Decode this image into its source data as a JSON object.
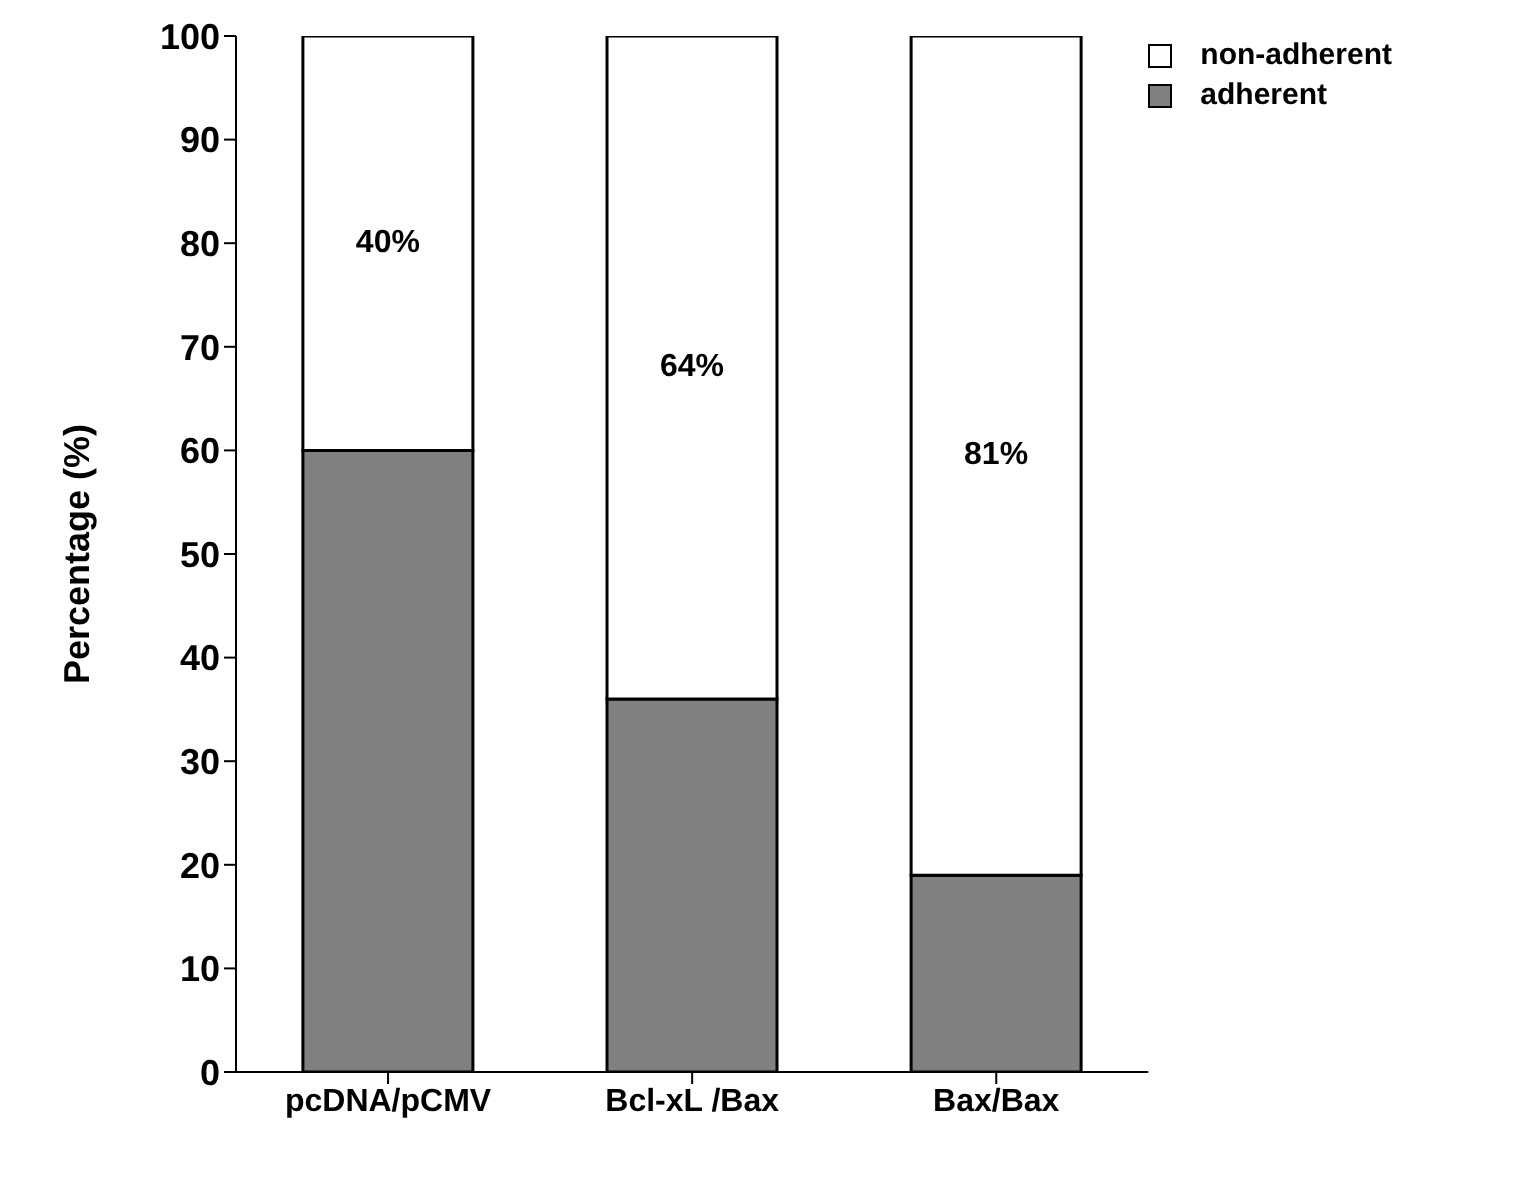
{
  "chart_data": {
    "type": "bar",
    "stacked": true,
    "ylabel": "Percentage (%)",
    "categories": [
      "pcDNA/pCMV",
      "Bcl-xL /Bax",
      "Bax/Bax"
    ],
    "series": [
      {
        "name": "adherent",
        "color": "#808080",
        "values": [
          60,
          36,
          19
        ]
      },
      {
        "name": "non-adherent",
        "color": "#ffffff",
        "values": [
          40,
          64,
          81
        ],
        "value_labels": [
          "40%",
          "64%",
          "81%"
        ]
      }
    ],
    "ylim": [
      0,
      100
    ],
    "yticks": [
      0,
      10,
      20,
      30,
      40,
      50,
      60,
      70,
      80,
      90,
      100
    ],
    "grid": false,
    "legend": "top right"
  }
}
